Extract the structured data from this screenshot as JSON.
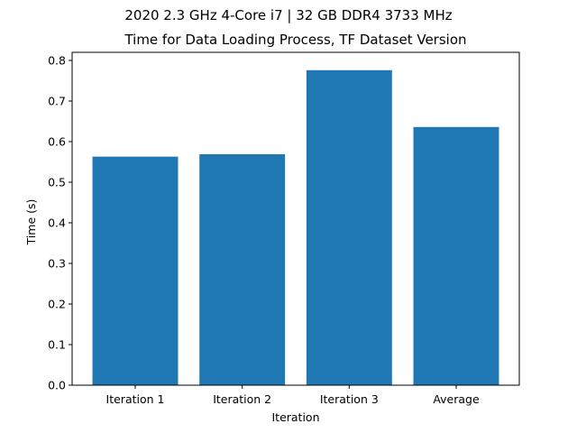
{
  "chart_data": {
    "type": "bar",
    "suptitle": "2020 2.3 GHz 4-Core i7 | 32 GB DDR4 3733 MHz",
    "title": "Time for Data Loading Process, TF Dataset Version",
    "xlabel": "Iteration",
    "ylabel": "Time (s)",
    "categories": [
      "Iteration 1",
      "Iteration 2",
      "Iteration 3",
      "Average"
    ],
    "values": [
      0.563,
      0.569,
      0.776,
      0.636
    ],
    "ylim": [
      0,
      0.82
    ],
    "yticks": [
      0.0,
      0.1,
      0.2,
      0.3,
      0.4,
      0.5,
      0.6,
      0.7,
      0.8
    ],
    "ytick_labels": [
      "0.0",
      "0.1",
      "0.2",
      "0.3",
      "0.4",
      "0.5",
      "0.6",
      "0.7",
      "0.8"
    ],
    "bar_color": "#1f77b4",
    "grid": false,
    "legend": false
  }
}
